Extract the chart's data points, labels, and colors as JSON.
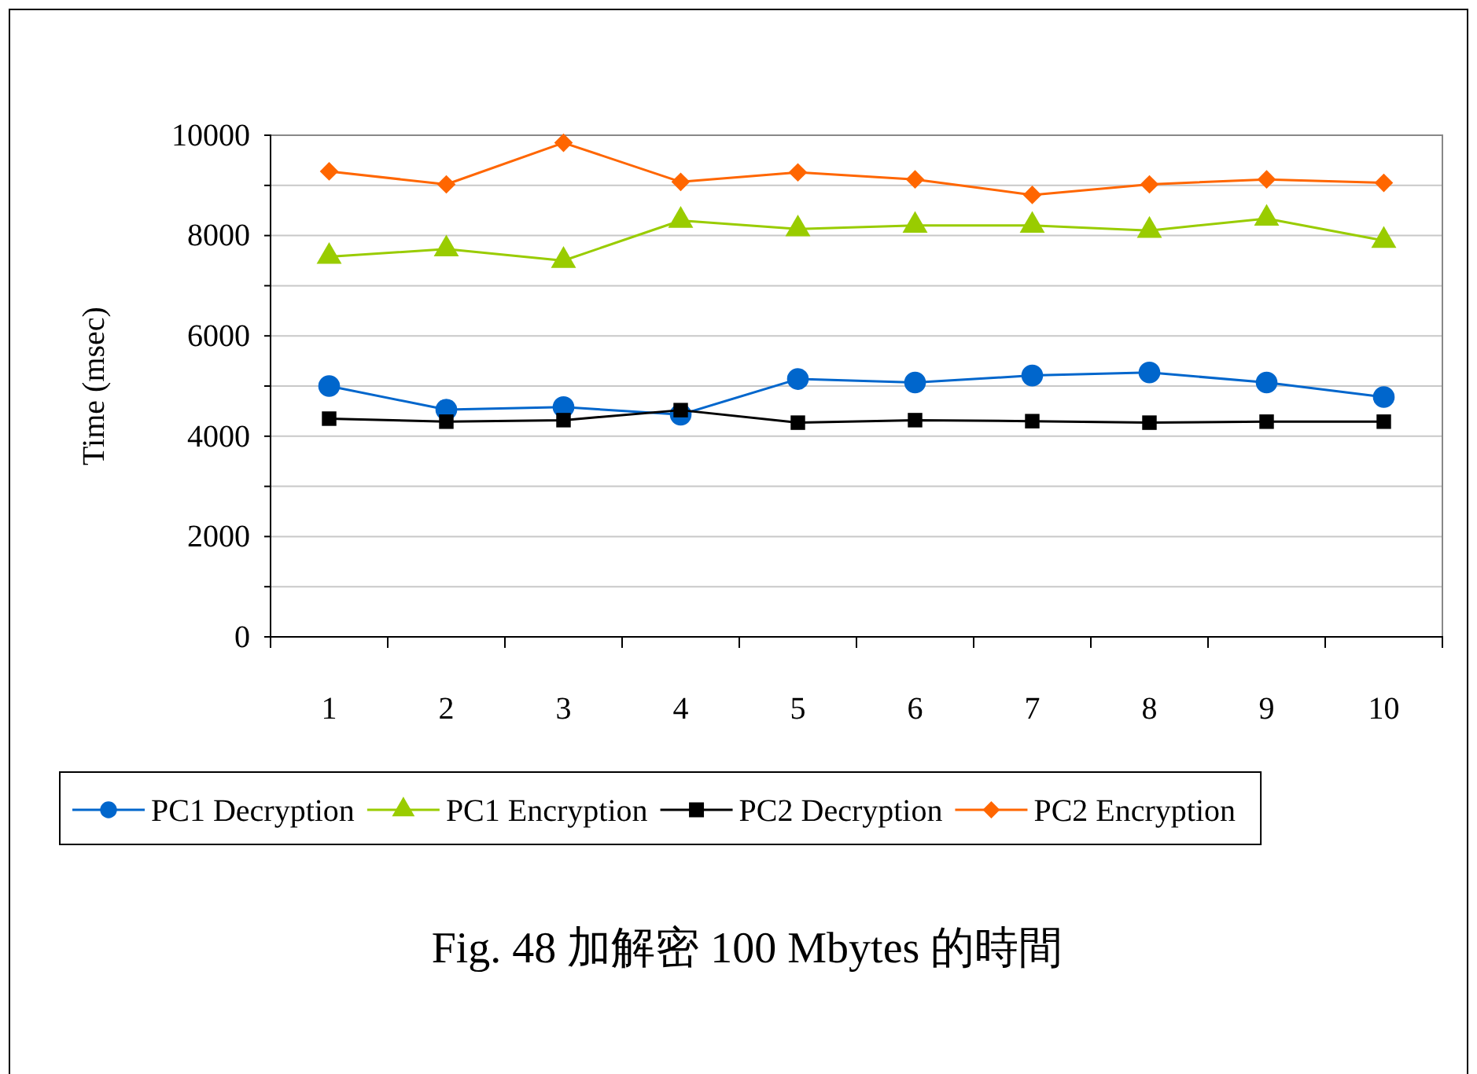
{
  "chart_data": {
    "type": "line",
    "title": "Fig. 48  加解密 100 Mbytes 的時間",
    "ylabel": "Time (msec)",
    "categories": [
      "1",
      "2",
      "3",
      "4",
      "5",
      "6",
      "7",
      "8",
      "9",
      "10"
    ],
    "series": [
      {
        "name": "PC1 Decryption",
        "color": "#0066cc",
        "marker": "circle",
        "values": [
          5000,
          4530,
          4580,
          4430,
          5140,
          5070,
          5210,
          5270,
          5070,
          4780
        ]
      },
      {
        "name": "PC1 Encryption",
        "color": "#99cc00",
        "marker": "triangle",
        "values": [
          7580,
          7730,
          7500,
          8300,
          8130,
          8200,
          8200,
          8100,
          8340,
          7900
        ]
      },
      {
        "name": "PC2 Decryption",
        "color": "#000000",
        "marker": "square",
        "values": [
          4350,
          4290,
          4320,
          4520,
          4270,
          4320,
          4300,
          4270,
          4290,
          4290
        ]
      },
      {
        "name": "PC2 Encryption",
        "color": "#ff6600",
        "marker": "diamond",
        "values": [
          9280,
          9020,
          9850,
          9070,
          9260,
          9120,
          8810,
          9020,
          9120,
          9050
        ]
      }
    ],
    "ylim": [
      0,
      10000
    ],
    "yticks": [
      0,
      {
        "value": 1000,
        "label": null
      },
      2000,
      {
        "value": 3000,
        "label": null
      },
      4000,
      {
        "value": 5000,
        "label": null
      },
      6000,
      {
        "value": 7000,
        "label": null
      },
      8000,
      {
        "value": 9000,
        "label": null
      },
      10000
    ],
    "grid": "y",
    "legend": "bottom"
  }
}
